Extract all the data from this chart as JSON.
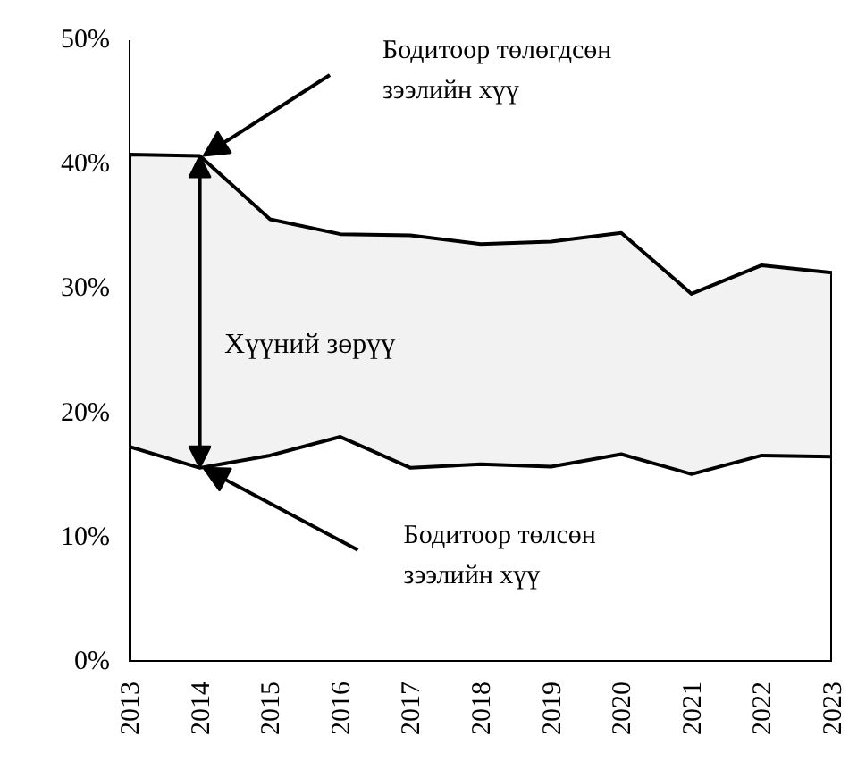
{
  "chart_data": {
    "type": "area",
    "categories": [
      "2013",
      "2014",
      "2015",
      "2016",
      "2017",
      "2018",
      "2019",
      "2020",
      "2021",
      "2022",
      "2023"
    ],
    "series": [
      {
        "color": "#f2f2f2",
        "values": [
          40.8,
          40.7,
          35.6,
          34.4,
          34.3,
          33.6,
          33.8,
          34.5,
          29.6,
          31.9,
          31.3
        ]
      },
      {
        "color": "#ffffff",
        "values": [
          17.3,
          15.6,
          16.6,
          18.1,
          15.6,
          15.9,
          15.7,
          16.7,
          15.1,
          16.6,
          16.5
        ]
      }
    ],
    "ylim": [
      0,
      50
    ],
    "yticks": [
      {
        "value": 0,
        "label": "0%"
      },
      {
        "value": 10,
        "label": "10%"
      },
      {
        "value": 20,
        "label": "20%"
      },
      {
        "value": 30,
        "label": "30%"
      },
      {
        "value": 40,
        "label": "40%"
      },
      {
        "value": 50,
        "label": "50%"
      }
    ],
    "grid": false,
    "annotations": [
      "Бодитоор төлөгдсөн\nзээлийн хүү",
      "Хүүний зөрүү",
      "Бодитоор төлсөн\nзээлийн хүү"
    ]
  }
}
